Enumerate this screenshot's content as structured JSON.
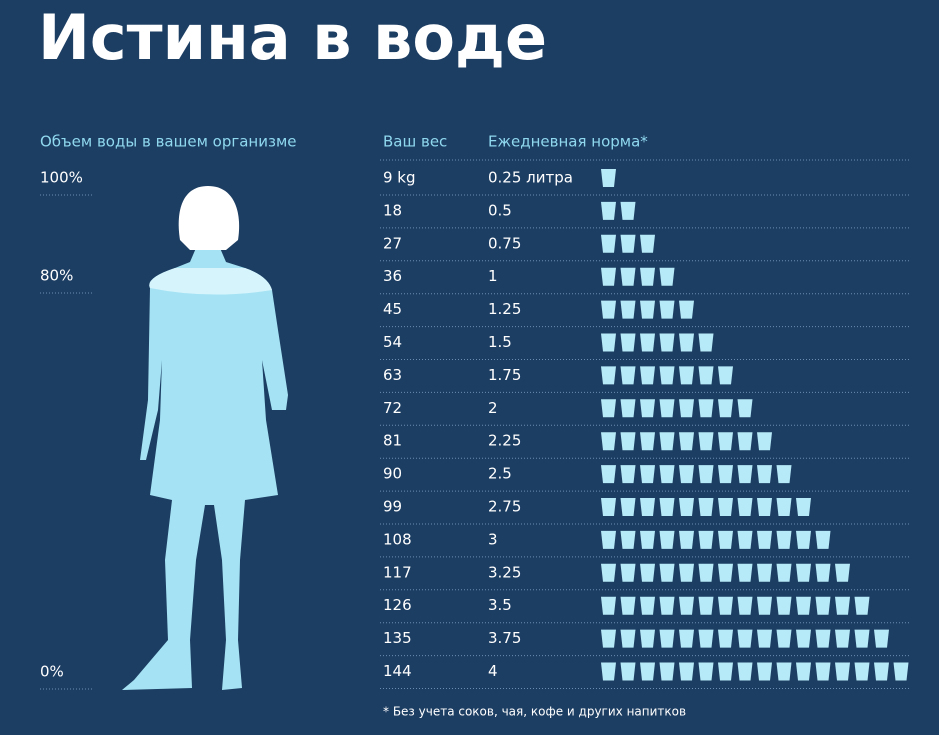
{
  "header": {
    "title": "Истина в воде"
  },
  "body_scale": {
    "heading": "Объем воды в вашем организме",
    "labels": [
      "100%",
      "80%",
      "0%"
    ]
  },
  "table": {
    "columns": [
      "Ваш вес",
      "Ежедневная норма*"
    ],
    "rows": [
      {
        "weight": "9 kg",
        "norm": "0.25 литра",
        "glasses": 1
      },
      {
        "weight": "18",
        "norm": "0.5",
        "glasses": 2
      },
      {
        "weight": "27",
        "norm": "0.75",
        "glasses": 3
      },
      {
        "weight": "36",
        "norm": "1",
        "glasses": 4
      },
      {
        "weight": "45",
        "norm": "1.25",
        "glasses": 5
      },
      {
        "weight": "54",
        "norm": "1.5",
        "glasses": 6
      },
      {
        "weight": "63",
        "norm": "1.75",
        "glasses": 7
      },
      {
        "weight": "72",
        "norm": "2",
        "glasses": 8
      },
      {
        "weight": "81",
        "norm": "2.25",
        "glasses": 9
      },
      {
        "weight": "90",
        "norm": "2.5",
        "glasses": 10
      },
      {
        "weight": "99",
        "norm": "2.75",
        "glasses": 11
      },
      {
        "weight": "108",
        "norm": "3",
        "glasses": 12
      },
      {
        "weight": "117",
        "norm": "3.25",
        "glasses": 13
      },
      {
        "weight": "126",
        "norm": "3.5",
        "glasses": 14
      },
      {
        "weight": "135",
        "norm": "3.75",
        "glasses": 15
      },
      {
        "weight": "144",
        "norm": "4",
        "glasses": 16
      }
    ]
  },
  "footnote": "* Без учета соков, чая, кофе и других напитков"
}
